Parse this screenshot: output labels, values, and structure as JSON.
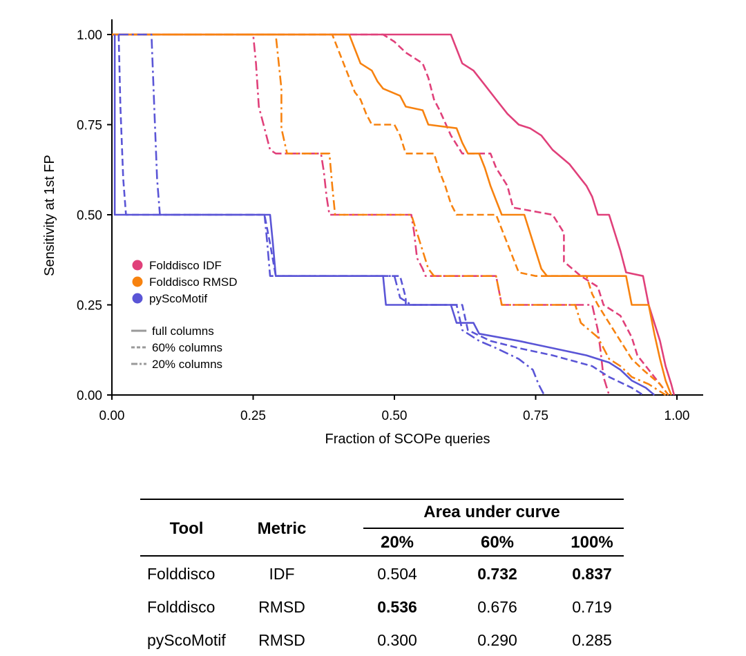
{
  "chart_data": {
    "type": "line",
    "xlabel": "Fraction of SCOPe queries",
    "ylabel": "Sensitivity at 1st FP",
    "xlim": [
      0,
      1
    ],
    "ylim": [
      0,
      1
    ],
    "x_ticks": [
      "0.00",
      "0.25",
      "0.50",
      "0.75",
      "1.00"
    ],
    "y_ticks": [
      "0.00",
      "0.25",
      "0.50",
      "0.75",
      "1.00"
    ],
    "grid": false,
    "legend_placement": "lower-left",
    "legend": {
      "tools": [
        {
          "name": "Folddisco IDF",
          "color": "#e0407a"
        },
        {
          "name": "Folddisco RMSD",
          "color": "#f7820f"
        },
        {
          "name": "pyScoMotif",
          "color": "#5a55d6"
        }
      ],
      "columns": [
        {
          "name": "full columns",
          "style": "solid"
        },
        {
          "name": "60% columns",
          "style": "dashed"
        },
        {
          "name": "20% columns",
          "style": "dashdot"
        }
      ]
    },
    "series": [
      {
        "tool": "Folddisco IDF",
        "columns": "full",
        "color": "#e0407a",
        "style": "solid",
        "points": [
          [
            0.0,
            1.0
          ],
          [
            0.6,
            1.0
          ],
          [
            0.61,
            0.96
          ],
          [
            0.62,
            0.92
          ],
          [
            0.64,
            0.9
          ],
          [
            0.66,
            0.86
          ],
          [
            0.68,
            0.82
          ],
          [
            0.7,
            0.78
          ],
          [
            0.72,
            0.75
          ],
          [
            0.74,
            0.74
          ],
          [
            0.76,
            0.72
          ],
          [
            0.78,
            0.68
          ],
          [
            0.81,
            0.64
          ],
          [
            0.83,
            0.6
          ],
          [
            0.84,
            0.58
          ],
          [
            0.85,
            0.55
          ],
          [
            0.86,
            0.5
          ],
          [
            0.88,
            0.5
          ],
          [
            0.89,
            0.45
          ],
          [
            0.9,
            0.4
          ],
          [
            0.91,
            0.34
          ],
          [
            0.94,
            0.33
          ],
          [
            0.95,
            0.25
          ],
          [
            0.97,
            0.15
          ],
          [
            0.98,
            0.08
          ],
          [
            0.99,
            0.03
          ],
          [
            0.995,
            0.0
          ]
        ]
      },
      {
        "tool": "Folddisco IDF",
        "columns": "60%",
        "color": "#e0407a",
        "style": "dashed",
        "points": [
          [
            0.0,
            1.0
          ],
          [
            0.48,
            1.0
          ],
          [
            0.5,
            0.98
          ],
          [
            0.52,
            0.95
          ],
          [
            0.55,
            0.92
          ],
          [
            0.56,
            0.88
          ],
          [
            0.57,
            0.82
          ],
          [
            0.58,
            0.79
          ],
          [
            0.6,
            0.72
          ],
          [
            0.62,
            0.67
          ],
          [
            0.67,
            0.67
          ],
          [
            0.68,
            0.63
          ],
          [
            0.7,
            0.58
          ],
          [
            0.71,
            0.52
          ],
          [
            0.78,
            0.5
          ],
          [
            0.8,
            0.45
          ],
          [
            0.8,
            0.37
          ],
          [
            0.83,
            0.33
          ],
          [
            0.86,
            0.3
          ],
          [
            0.87,
            0.25
          ],
          [
            0.9,
            0.22
          ],
          [
            0.92,
            0.16
          ],
          [
            0.93,
            0.11
          ],
          [
            0.96,
            0.05
          ],
          [
            0.985,
            0.0
          ]
        ]
      },
      {
        "tool": "Folddisco IDF",
        "columns": "20%",
        "color": "#e0407a",
        "style": "dashdot",
        "points": [
          [
            0.0,
            1.0
          ],
          [
            0.25,
            1.0
          ],
          [
            0.255,
            0.92
          ],
          [
            0.26,
            0.8
          ],
          [
            0.27,
            0.74
          ],
          [
            0.28,
            0.68
          ],
          [
            0.29,
            0.67
          ],
          [
            0.37,
            0.67
          ],
          [
            0.375,
            0.62
          ],
          [
            0.38,
            0.55
          ],
          [
            0.385,
            0.5
          ],
          [
            0.53,
            0.5
          ],
          [
            0.535,
            0.45
          ],
          [
            0.54,
            0.38
          ],
          [
            0.55,
            0.35
          ],
          [
            0.555,
            0.33
          ],
          [
            0.68,
            0.33
          ],
          [
            0.69,
            0.25
          ],
          [
            0.7,
            0.25
          ],
          [
            0.8,
            0.25
          ],
          [
            0.85,
            0.25
          ],
          [
            0.86,
            0.18
          ],
          [
            0.865,
            0.12
          ],
          [
            0.87,
            0.05
          ],
          [
            0.88,
            0.0
          ]
        ]
      },
      {
        "tool": "Folddisco RMSD",
        "columns": "full",
        "color": "#f7820f",
        "style": "solid",
        "points": [
          [
            0.0,
            1.0
          ],
          [
            0.42,
            1.0
          ],
          [
            0.43,
            0.96
          ],
          [
            0.44,
            0.92
          ],
          [
            0.46,
            0.9
          ],
          [
            0.47,
            0.87
          ],
          [
            0.48,
            0.85
          ],
          [
            0.51,
            0.83
          ],
          [
            0.52,
            0.8
          ],
          [
            0.55,
            0.79
          ],
          [
            0.56,
            0.75
          ],
          [
            0.61,
            0.74
          ],
          [
            0.62,
            0.7
          ],
          [
            0.63,
            0.67
          ],
          [
            0.65,
            0.67
          ],
          [
            0.66,
            0.63
          ],
          [
            0.67,
            0.58
          ],
          [
            0.68,
            0.54
          ],
          [
            0.69,
            0.5
          ],
          [
            0.73,
            0.5
          ],
          [
            0.74,
            0.45
          ],
          [
            0.75,
            0.4
          ],
          [
            0.76,
            0.35
          ],
          [
            0.77,
            0.33
          ],
          [
            0.91,
            0.33
          ],
          [
            0.92,
            0.25
          ],
          [
            0.95,
            0.25
          ],
          [
            0.96,
            0.17
          ],
          [
            0.97,
            0.1
          ],
          [
            0.98,
            0.04
          ],
          [
            0.99,
            0.0
          ]
        ]
      },
      {
        "tool": "Folddisco RMSD",
        "columns": "60%",
        "color": "#f7820f",
        "style": "dashed",
        "points": [
          [
            0.0,
            1.0
          ],
          [
            0.39,
            1.0
          ],
          [
            0.4,
            0.96
          ],
          [
            0.41,
            0.92
          ],
          [
            0.42,
            0.88
          ],
          [
            0.43,
            0.84
          ],
          [
            0.44,
            0.82
          ],
          [
            0.45,
            0.78
          ],
          [
            0.46,
            0.75
          ],
          [
            0.5,
            0.75
          ],
          [
            0.51,
            0.72
          ],
          [
            0.52,
            0.67
          ],
          [
            0.57,
            0.67
          ],
          [
            0.58,
            0.62
          ],
          [
            0.59,
            0.58
          ],
          [
            0.6,
            0.53
          ],
          [
            0.61,
            0.5
          ],
          [
            0.68,
            0.5
          ],
          [
            0.69,
            0.46
          ],
          [
            0.7,
            0.42
          ],
          [
            0.71,
            0.38
          ],
          [
            0.72,
            0.34
          ],
          [
            0.75,
            0.33
          ],
          [
            0.84,
            0.33
          ],
          [
            0.85,
            0.28
          ],
          [
            0.86,
            0.25
          ],
          [
            0.88,
            0.2
          ],
          [
            0.9,
            0.15
          ],
          [
            0.92,
            0.1
          ],
          [
            0.94,
            0.07
          ],
          [
            0.97,
            0.03
          ],
          [
            0.985,
            0.0
          ]
        ]
      },
      {
        "tool": "Folddisco RMSD",
        "columns": "20%",
        "color": "#f7820f",
        "style": "dashdot",
        "points": [
          [
            0.0,
            1.0
          ],
          [
            0.29,
            1.0
          ],
          [
            0.3,
            0.85
          ],
          [
            0.3,
            0.74
          ],
          [
            0.31,
            0.67
          ],
          [
            0.385,
            0.67
          ],
          [
            0.39,
            0.58
          ],
          [
            0.395,
            0.5
          ],
          [
            0.53,
            0.5
          ],
          [
            0.54,
            0.45
          ],
          [
            0.55,
            0.4
          ],
          [
            0.56,
            0.35
          ],
          [
            0.57,
            0.33
          ],
          [
            0.68,
            0.33
          ],
          [
            0.69,
            0.25
          ],
          [
            0.76,
            0.25
          ],
          [
            0.82,
            0.25
          ],
          [
            0.83,
            0.2
          ],
          [
            0.86,
            0.16
          ],
          [
            0.87,
            0.13
          ],
          [
            0.88,
            0.1
          ],
          [
            0.9,
            0.08
          ],
          [
            0.92,
            0.05
          ],
          [
            0.95,
            0.03
          ],
          [
            0.98,
            0.0
          ]
        ]
      },
      {
        "tool": "pyScoMotif",
        "columns": "full",
        "color": "#5a55d6",
        "style": "solid",
        "points": [
          [
            0.005,
            1.0
          ],
          [
            0.005,
            0.5
          ],
          [
            0.28,
            0.5
          ],
          [
            0.285,
            0.42
          ],
          [
            0.29,
            0.33
          ],
          [
            0.48,
            0.33
          ],
          [
            0.485,
            0.25
          ],
          [
            0.6,
            0.25
          ],
          [
            0.61,
            0.2
          ],
          [
            0.64,
            0.2
          ],
          [
            0.65,
            0.17
          ],
          [
            0.72,
            0.15
          ],
          [
            0.78,
            0.13
          ],
          [
            0.84,
            0.11
          ],
          [
            0.88,
            0.09
          ],
          [
            0.9,
            0.07
          ],
          [
            0.92,
            0.04
          ],
          [
            0.945,
            0.02
          ],
          [
            0.96,
            0.0
          ]
        ]
      },
      {
        "tool": "pyScoMotif",
        "columns": "60%",
        "color": "#5a55d6",
        "style": "dashed",
        "points": [
          [
            0.012,
            1.0
          ],
          [
            0.015,
            0.8
          ],
          [
            0.02,
            0.6
          ],
          [
            0.025,
            0.5
          ],
          [
            0.27,
            0.5
          ],
          [
            0.28,
            0.42
          ],
          [
            0.29,
            0.33
          ],
          [
            0.51,
            0.33
          ],
          [
            0.52,
            0.27
          ],
          [
            0.52,
            0.25
          ],
          [
            0.62,
            0.25
          ],
          [
            0.63,
            0.18
          ],
          [
            0.67,
            0.15
          ],
          [
            0.72,
            0.13
          ],
          [
            0.78,
            0.11
          ],
          [
            0.85,
            0.08
          ],
          [
            0.88,
            0.05
          ],
          [
            0.92,
            0.02
          ],
          [
            0.94,
            0.0
          ]
        ]
      },
      {
        "tool": "pyScoMotif",
        "columns": "20%",
        "color": "#5a55d6",
        "style": "dashdot",
        "points": [
          [
            0.012,
            1.0
          ],
          [
            0.07,
            1.0
          ],
          [
            0.075,
            0.8
          ],
          [
            0.08,
            0.6
          ],
          [
            0.085,
            0.5
          ],
          [
            0.27,
            0.5
          ],
          [
            0.275,
            0.42
          ],
          [
            0.28,
            0.33
          ],
          [
            0.5,
            0.33
          ],
          [
            0.51,
            0.27
          ],
          [
            0.53,
            0.25
          ],
          [
            0.61,
            0.25
          ],
          [
            0.62,
            0.18
          ],
          [
            0.65,
            0.15
          ],
          [
            0.68,
            0.13
          ],
          [
            0.72,
            0.1
          ],
          [
            0.745,
            0.07
          ],
          [
            0.755,
            0.03
          ],
          [
            0.765,
            0.0
          ]
        ]
      }
    ]
  },
  "table": {
    "headers": {
      "tool": "Tool",
      "metric": "Metric",
      "auc_group": "Area under curve",
      "c20": "20%",
      "c60": "60%",
      "c100": "100%"
    },
    "rows": [
      {
        "tool": "Folddisco",
        "metric": "IDF",
        "v20": "0.504",
        "v60": "0.732",
        "v100": "0.837",
        "bold": [
          false,
          true,
          true
        ]
      },
      {
        "tool": "Folddisco",
        "metric": "RMSD",
        "v20": "0.536",
        "v60": "0.676",
        "v100": "0.719",
        "bold": [
          true,
          false,
          false
        ]
      },
      {
        "tool": "pyScoMotif",
        "metric": "RMSD",
        "v20": "0.300",
        "v60": "0.290",
        "v100": "0.285",
        "bold": [
          false,
          false,
          false
        ]
      }
    ]
  }
}
